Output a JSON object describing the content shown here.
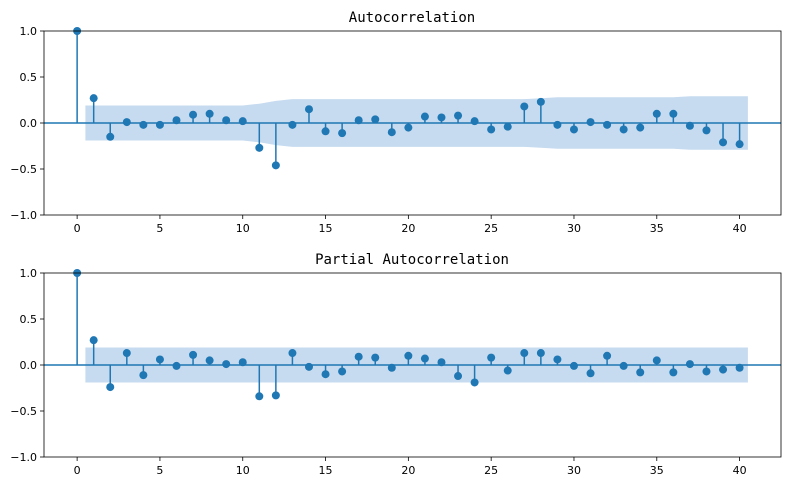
{
  "colors": {
    "stem": "#1f77b4",
    "confidence_band": "#c6dbef",
    "axes": "#000000",
    "zero_line": "#1f77b4"
  },
  "chart_data": [
    {
      "type": "stem",
      "title": "Autocorrelation",
      "xlabel": "",
      "ylabel": "",
      "xlim": [
        -2,
        42.5
      ],
      "ylim": [
        -1.0,
        1.0
      ],
      "xticks": [
        "0",
        "5",
        "10",
        "15",
        "20",
        "25",
        "30",
        "35",
        "40"
      ],
      "yticks": [
        "1.0",
        "0.5",
        "0.0",
        "−0.5",
        "−1.0"
      ],
      "lags": [
        0,
        1,
        2,
        3,
        4,
        5,
        6,
        7,
        8,
        9,
        10,
        11,
        12,
        13,
        14,
        15,
        16,
        17,
        18,
        19,
        20,
        21,
        22,
        23,
        24,
        25,
        26,
        27,
        28,
        29,
        30,
        31,
        32,
        33,
        34,
        35,
        36,
        37,
        38,
        39,
        40
      ],
      "values": [
        1.0,
        0.27,
        -0.15,
        0.01,
        -0.02,
        -0.02,
        0.03,
        0.09,
        0.1,
        0.03,
        0.02,
        -0.27,
        -0.46,
        -0.02,
        0.15,
        -0.09,
        -0.11,
        0.03,
        0.04,
        -0.1,
        -0.05,
        0.07,
        0.06,
        0.08,
        0.02,
        -0.07,
        -0.04,
        0.18,
        0.23,
        -0.02,
        -0.07,
        0.01,
        -0.02,
        -0.07,
        -0.05,
        0.1,
        0.1,
        -0.03,
        -0.08,
        -0.21,
        -0.23
      ],
      "confidence_band": [
        0.19,
        0.19,
        0.19,
        0.19,
        0.19,
        0.19,
        0.19,
        0.19,
        0.19,
        0.19,
        0.19,
        0.21,
        0.24,
        0.26,
        0.26,
        0.26,
        0.26,
        0.26,
        0.26,
        0.26,
        0.26,
        0.26,
        0.26,
        0.26,
        0.26,
        0.26,
        0.26,
        0.26,
        0.27,
        0.28,
        0.28,
        0.28,
        0.28,
        0.28,
        0.28,
        0.28,
        0.28,
        0.29,
        0.29,
        0.29,
        0.29
      ],
      "grid": false
    },
    {
      "type": "stem",
      "title": "Partial Autocorrelation",
      "xlabel": "",
      "ylabel": "",
      "xlim": [
        -2,
        42.5
      ],
      "ylim": [
        -1.0,
        1.0
      ],
      "xticks": [
        "0",
        "5",
        "10",
        "15",
        "20",
        "25",
        "30",
        "35",
        "40"
      ],
      "yticks": [
        "1.0",
        "0.5",
        "0.0",
        "−0.5",
        "−1.0"
      ],
      "lags": [
        0,
        1,
        2,
        3,
        4,
        5,
        6,
        7,
        8,
        9,
        10,
        11,
        12,
        13,
        14,
        15,
        16,
        17,
        18,
        19,
        20,
        21,
        22,
        23,
        24,
        25,
        26,
        27,
        28,
        29,
        30,
        31,
        32,
        33,
        34,
        35,
        36,
        37,
        38,
        39,
        40
      ],
      "values": [
        1.0,
        0.27,
        -0.24,
        0.13,
        -0.11,
        0.06,
        -0.01,
        0.11,
        0.05,
        0.01,
        0.03,
        -0.34,
        -0.33,
        0.13,
        -0.02,
        -0.1,
        -0.07,
        0.09,
        0.08,
        -0.03,
        0.1,
        0.07,
        0.03,
        -0.12,
        -0.19,
        0.08,
        -0.06,
        0.13,
        0.13,
        0.06,
        -0.01,
        -0.09,
        0.1,
        -0.01,
        -0.08,
        0.05,
        -0.08,
        0.01,
        -0.07,
        -0.05,
        -0.03
      ],
      "confidence_band": [
        0.19,
        0.19,
        0.19,
        0.19,
        0.19,
        0.19,
        0.19,
        0.19,
        0.19,
        0.19,
        0.19,
        0.19,
        0.19,
        0.19,
        0.19,
        0.19,
        0.19,
        0.19,
        0.19,
        0.19,
        0.19,
        0.19,
        0.19,
        0.19,
        0.19,
        0.19,
        0.19,
        0.19,
        0.19,
        0.19,
        0.19,
        0.19,
        0.19,
        0.19,
        0.19,
        0.19,
        0.19,
        0.19,
        0.19,
        0.19,
        0.19
      ],
      "grid": false
    }
  ]
}
